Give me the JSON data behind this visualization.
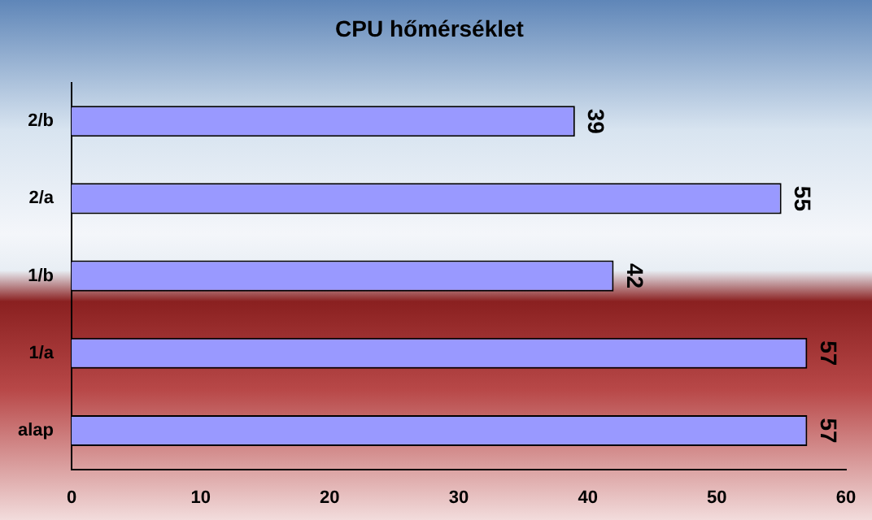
{
  "chart_data": {
    "type": "bar",
    "title": "CPU hőmérséklet",
    "orientation": "horizontal",
    "categories": [
      "2/b",
      "2/a",
      "1/b",
      "1/a",
      "alap"
    ],
    "values": [
      39,
      55,
      42,
      57,
      57
    ],
    "color": "#9999ff",
    "xlim": [
      0,
      60
    ],
    "xticks": [
      0,
      10,
      20,
      30,
      40,
      50,
      60
    ],
    "grid": false,
    "legend": false,
    "data_labels": true
  }
}
